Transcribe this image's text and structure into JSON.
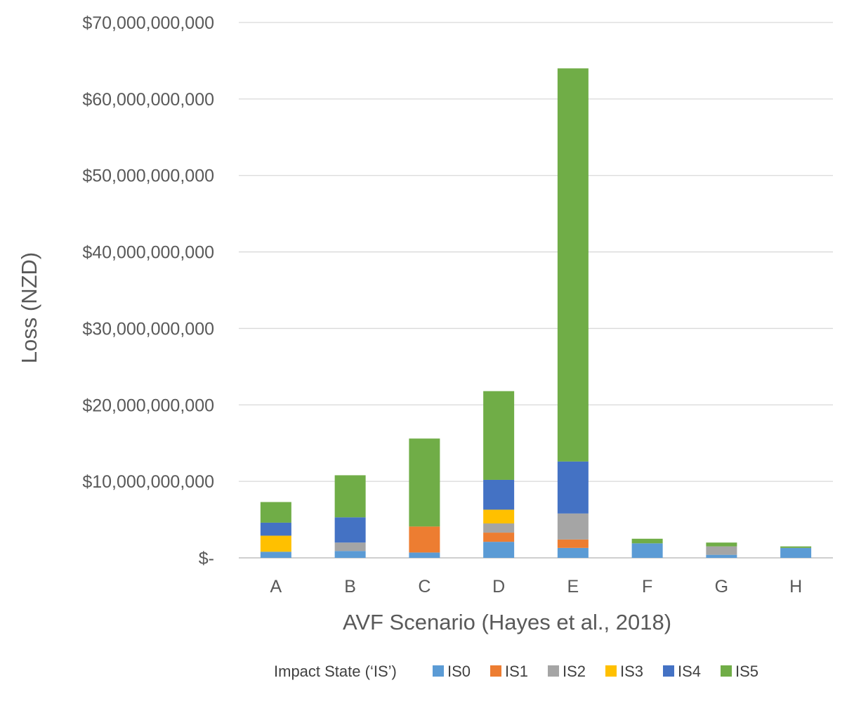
{
  "chart_data": {
    "type": "bar",
    "stacked": true,
    "title": "",
    "xlabel": "AVF Scenario (Hayes et al., 2018)",
    "ylabel": "Loss (NZD)",
    "ylim": [
      0,
      70000000000
    ],
    "y_ticks": [
      0,
      10000000000,
      20000000000,
      30000000000,
      40000000000,
      50000000000,
      60000000000,
      70000000000
    ],
    "y_tick_labels": [
      "$-",
      "$10,000,000,000",
      "$20,000,000,000",
      "$30,000,000,000",
      "$40,000,000,000",
      "$50,000,000,000",
      "$60,000,000,000",
      "$70,000,000,000"
    ],
    "grid": true,
    "legend_position": "bottom",
    "legend_title": "Impact State (‘IS’)",
    "categories": [
      "A",
      "B",
      "C",
      "D",
      "E",
      "F",
      "G",
      "H"
    ],
    "series": [
      {
        "name": "IS0",
        "color": "#5b9bd5",
        "values": [
          800000000,
          900000000,
          700000000,
          2100000000,
          1300000000,
          1900000000,
          400000000,
          1300000000
        ]
      },
      {
        "name": "IS1",
        "color": "#ed7d31",
        "values": [
          0,
          0,
          3400000000,
          1200000000,
          1100000000,
          0,
          0,
          0
        ]
      },
      {
        "name": "IS2",
        "color": "#a5a5a5",
        "values": [
          0,
          1100000000,
          0,
          1200000000,
          3400000000,
          0,
          1100000000,
          0
        ]
      },
      {
        "name": "IS3",
        "color": "#ffc000",
        "values": [
          2100000000,
          0,
          0,
          1800000000,
          0,
          0,
          0,
          0
        ]
      },
      {
        "name": "IS4",
        "color": "#4472c4",
        "values": [
          1700000000,
          3300000000,
          0,
          3900000000,
          6800000000,
          0,
          0,
          0
        ]
      },
      {
        "name": "IS5",
        "color": "#70ad47",
        "values": [
          2700000000,
          5500000000,
          11500000000,
          11600000000,
          51400000000,
          600000000,
          500000000,
          200000000
        ]
      }
    ]
  }
}
